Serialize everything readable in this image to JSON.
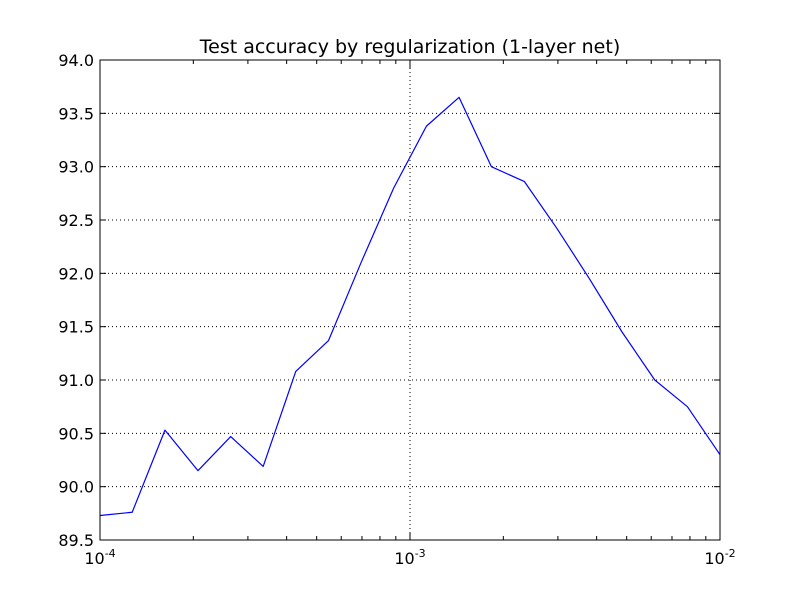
{
  "chart_data": {
    "type": "line",
    "title": "Test accuracy by regularization (1-layer net)",
    "xlabel": "",
    "ylabel": "",
    "x_scale": "log",
    "xlim": [
      0.0001,
      0.01
    ],
    "ylim": [
      89.5,
      94.0
    ],
    "grid": true,
    "line_color": "#0000ff",
    "x_ticks": [
      {
        "value": 0.0001,
        "base": "10",
        "exp": "-4"
      },
      {
        "value": 0.001,
        "base": "10",
        "exp": "-3"
      },
      {
        "value": 0.01,
        "base": "10",
        "exp": "-2"
      }
    ],
    "y_ticks": [
      {
        "value": 89.5,
        "label": "89.5"
      },
      {
        "value": 90.0,
        "label": "90.0"
      },
      {
        "value": 90.5,
        "label": "90.5"
      },
      {
        "value": 91.0,
        "label": "91.0"
      },
      {
        "value": 91.5,
        "label": "91.5"
      },
      {
        "value": 92.0,
        "label": "92.0"
      },
      {
        "value": 92.5,
        "label": "92.5"
      },
      {
        "value": 93.0,
        "label": "93.0"
      },
      {
        "value": 93.5,
        "label": "93.5"
      },
      {
        "value": 94.0,
        "label": "94.0"
      }
    ],
    "series": [
      {
        "x": [
          0.0001,
          0.000127,
          0.000162,
          0.000207,
          0.000264,
          0.000336,
          0.000428,
          0.000546,
          0.000695,
          0.000886,
          0.00113,
          0.00144,
          0.00183,
          0.00234,
          0.00298,
          0.00379,
          0.00483,
          0.00616,
          0.00785,
          0.01
        ],
        "y": [
          89.73,
          89.76,
          90.53,
          90.15,
          90.47,
          90.19,
          91.08,
          91.37,
          92.1,
          92.8,
          93.38,
          93.65,
          93.0,
          92.86,
          92.42,
          91.95,
          91.45,
          91.0,
          90.75,
          90.3
        ]
      }
    ]
  }
}
